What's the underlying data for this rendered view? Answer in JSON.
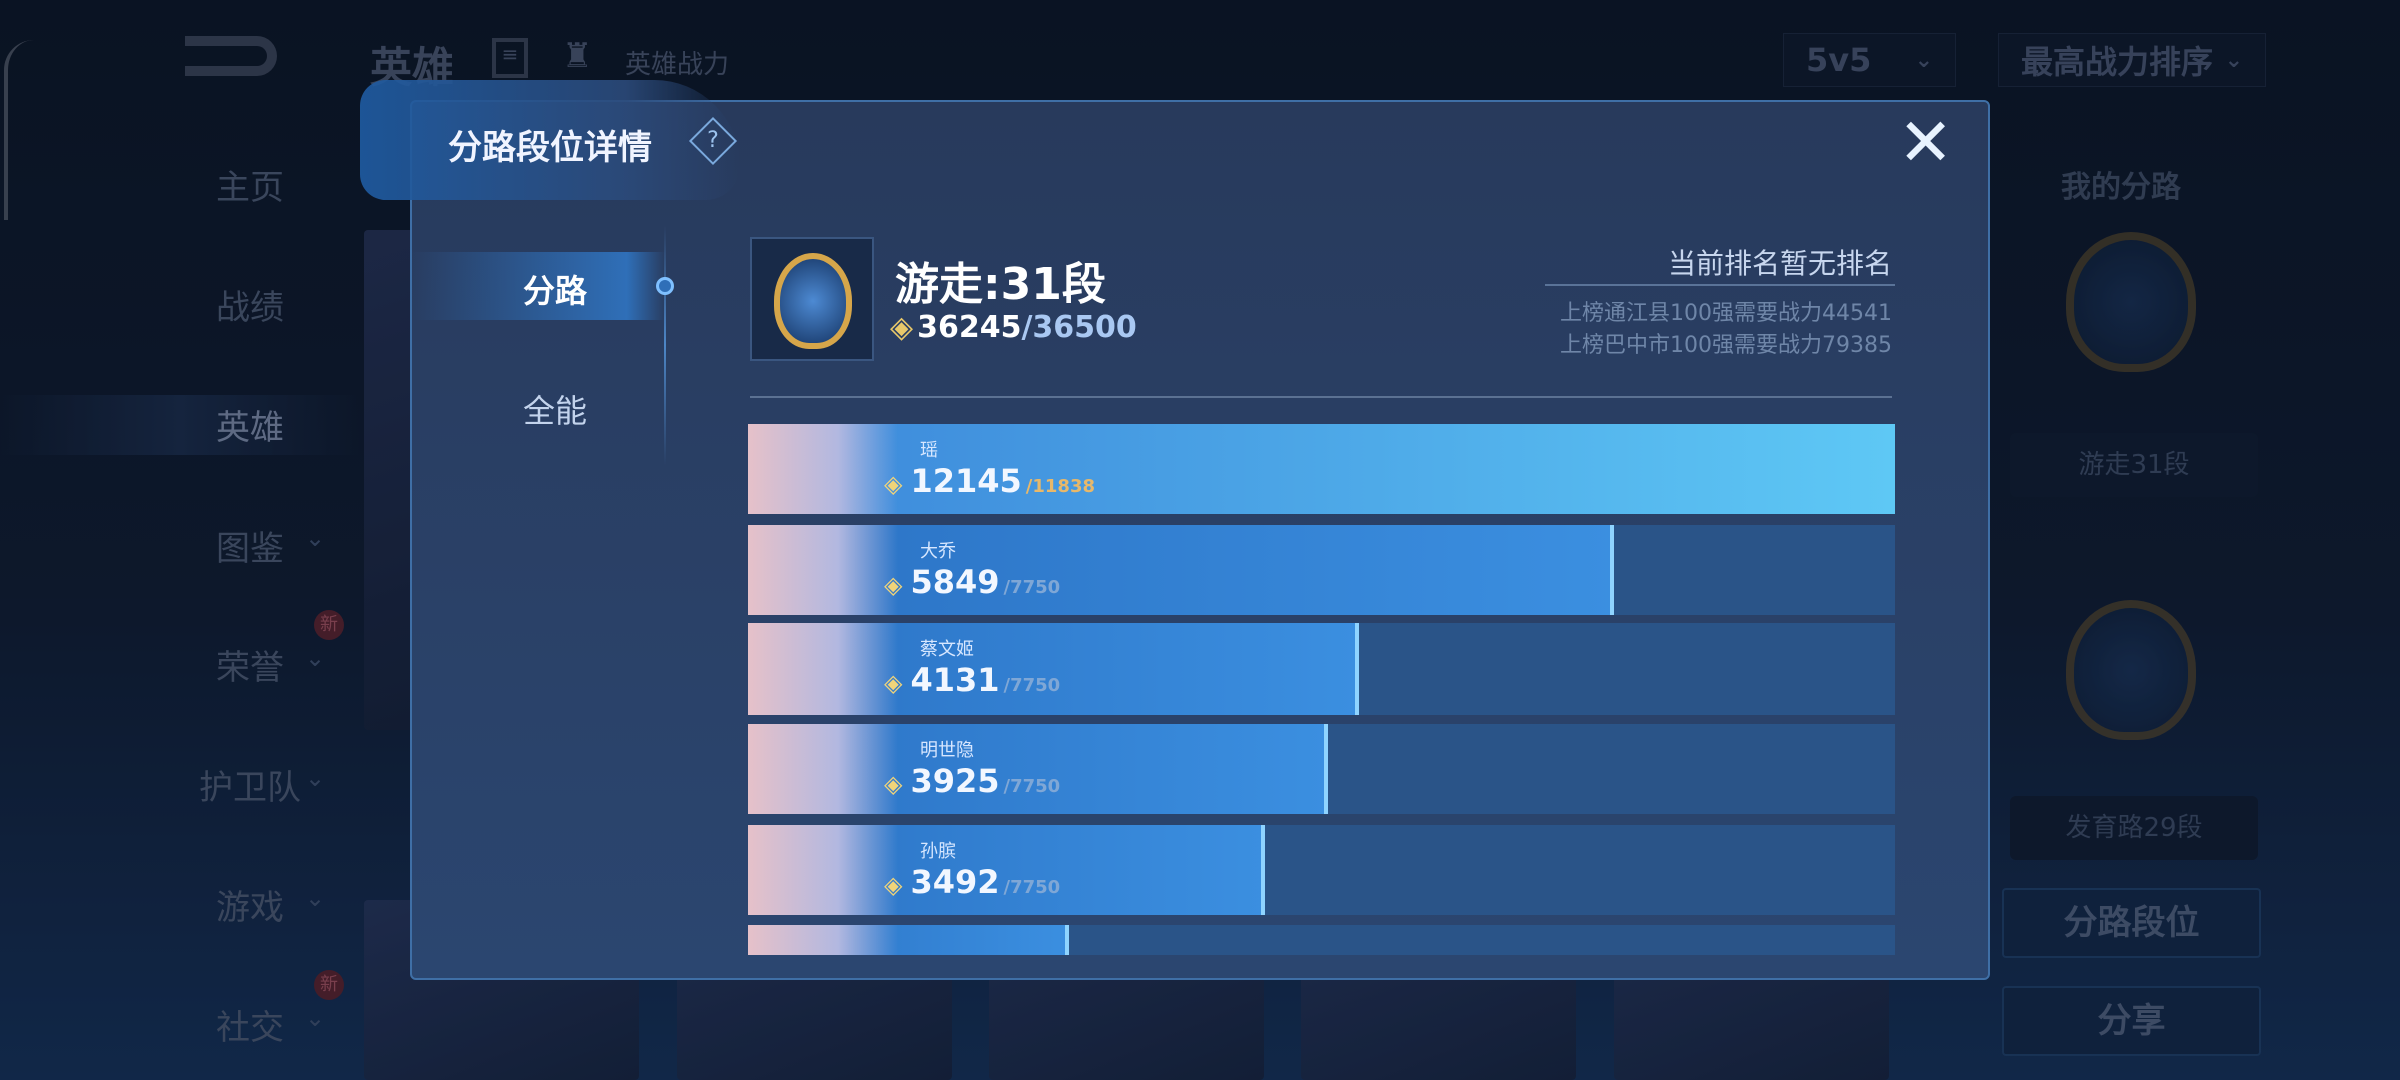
{
  "background": {
    "header": {
      "title": "英雄",
      "sub": "英雄战力",
      "mode_select": "5v5",
      "sort_select": "最高战力排序"
    },
    "sidebar": {
      "items": [
        {
          "label": "主页"
        },
        {
          "label": "战绩"
        },
        {
          "label": "英雄",
          "active": true
        },
        {
          "label": "图鉴"
        },
        {
          "label": "荣誉",
          "badge": "新"
        },
        {
          "label": "护卫队"
        },
        {
          "label": "游戏"
        },
        {
          "label": "社交",
          "badge": "新"
        }
      ]
    },
    "right_panel": {
      "title": "我的分路",
      "lane1": "游走31段",
      "lane2": "发育路29段",
      "btn_lane_rank": "分路段位",
      "btn_share": "分享"
    }
  },
  "modal": {
    "title": "分路段位详情",
    "help": "?",
    "close": "✕",
    "tabs": [
      {
        "label": "分路",
        "active": true
      },
      {
        "label": "全能",
        "active": false
      }
    ],
    "rank": {
      "title": "游走:31段",
      "power": "36245",
      "power_target": "/36500"
    },
    "ranking": {
      "status": "当前排名暂无排名",
      "line1": "上榜通江县100强需要战力44541",
      "line2": "上榜巴中市100强需要战力79385"
    },
    "heroes": [
      {
        "name": "瑶",
        "power": "12145",
        "target": "/11838",
        "progress": 1.0
      },
      {
        "name": "大乔",
        "power": "5849",
        "target": "/7750",
        "progress": 0.755
      },
      {
        "name": "蔡文姬",
        "power": "4131",
        "target": "/7750",
        "progress": 0.533
      },
      {
        "name": "明世隐",
        "power": "3925",
        "target": "/7750",
        "progress": 0.506
      },
      {
        "name": "孙膑",
        "power": "3492",
        "target": "/7750",
        "progress": 0.451
      },
      {
        "progress": 0.28
      }
    ]
  },
  "colors": {
    "accent": "#3b8fe0",
    "gold": "#e8b86a",
    "modal_bg": "#283a5c"
  }
}
